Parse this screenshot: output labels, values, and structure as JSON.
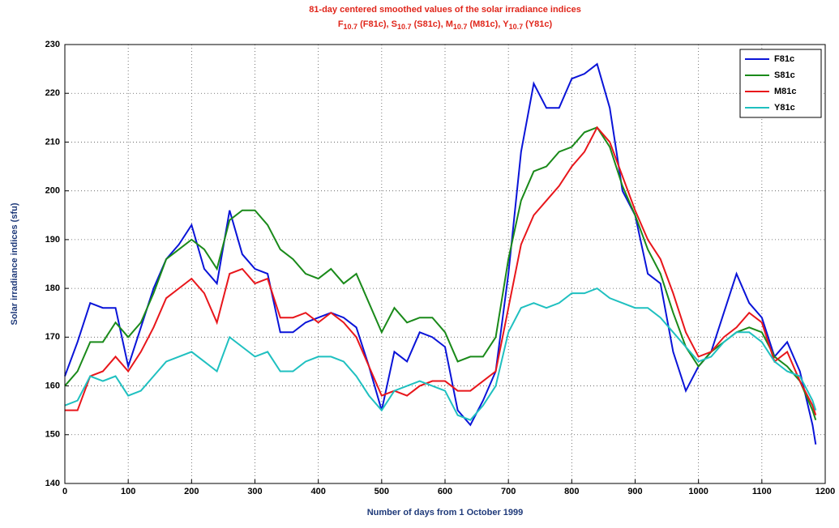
{
  "chart_data": {
    "type": "line",
    "title": "81-day centered smoothed values of the solar irradiance indices",
    "subtitle": [
      "F",
      "10.7",
      " (F81c), S",
      "10.7",
      " (S81c), M",
      "10.7",
      " (M81c), Y",
      "10.7",
      " (Y81c)"
    ],
    "xlabel": "Number of days from 1 October 1999",
    "ylabel": "Solar irradiance indices (sfu)",
    "x": [
      0,
      20,
      40,
      60,
      80,
      100,
      120,
      140,
      160,
      180,
      200,
      220,
      240,
      260,
      280,
      300,
      320,
      340,
      360,
      380,
      400,
      420,
      440,
      460,
      480,
      500,
      520,
      540,
      560,
      580,
      600,
      620,
      640,
      660,
      680,
      700,
      720,
      740,
      760,
      780,
      800,
      820,
      840,
      860,
      880,
      900,
      920,
      940,
      960,
      980,
      1000,
      1020,
      1040,
      1060,
      1080,
      1100,
      1120,
      1140,
      1160,
      1180,
      1185
    ],
    "series": [
      {
        "name": "F81c",
        "color": "#0a14d8",
        "values": [
          162,
          169,
          177,
          176,
          176,
          164,
          172,
          180,
          186,
          189,
          193,
          184,
          181,
          196,
          187,
          184,
          183,
          171,
          171,
          173,
          174,
          175,
          174,
          172,
          164,
          155,
          167,
          165,
          171,
          170,
          168,
          155,
          152,
          157,
          163,
          183,
          208,
          222,
          217,
          217,
          223,
          224,
          226,
          217,
          200,
          195,
          183,
          181,
          167,
          159,
          164,
          167,
          175,
          183,
          177,
          174,
          166,
          169,
          163,
          152,
          148
        ]
      },
      {
        "name": "S81c",
        "color": "#1a8a1a",
        "values": [
          160,
          163,
          169,
          169,
          173,
          170,
          173,
          179,
          186,
          188,
          190,
          188,
          184,
          194,
          196,
          196,
          193,
          188,
          186,
          183,
          182,
          184,
          181,
          183,
          177,
          171,
          176,
          173,
          174,
          174,
          171,
          165,
          166,
          166,
          170,
          186,
          198,
          204,
          205,
          208,
          209,
          212,
          213,
          209,
          201,
          195,
          188,
          183,
          175,
          168,
          164,
          167,
          169,
          171,
          172,
          171,
          166,
          164,
          161,
          155,
          153
        ]
      },
      {
        "name": "M81c",
        "color": "#e8161b",
        "values": [
          155,
          155,
          162,
          163,
          166,
          163,
          167,
          172,
          178,
          180,
          182,
          179,
          173,
          183,
          184,
          181,
          182,
          174,
          174,
          175,
          173,
          175,
          173,
          170,
          164,
          158,
          159,
          158,
          160,
          161,
          161,
          159,
          159,
          161,
          163,
          176,
          189,
          195,
          198,
          201,
          205,
          208,
          213,
          210,
          203,
          196,
          190,
          186,
          179,
          171,
          166,
          167,
          170,
          172,
          175,
          173,
          165,
          167,
          161,
          156,
          154
        ]
      },
      {
        "name": "Y81c",
        "color": "#1fc0c0",
        "values": [
          156,
          157,
          162,
          161,
          162,
          158,
          159,
          162,
          165,
          166,
          167,
          165,
          163,
          170,
          168,
          166,
          167,
          163,
          163,
          165,
          166,
          166,
          165,
          162,
          158,
          155,
          159,
          160,
          161,
          160,
          159,
          154,
          153,
          156,
          160,
          171,
          176,
          177,
          176,
          177,
          179,
          179,
          180,
          178,
          177,
          176,
          176,
          174,
          171,
          168,
          165,
          166,
          169,
          171,
          171,
          169,
          165,
          163,
          162,
          157,
          155
        ]
      }
    ],
    "xlim": [
      0,
      1200
    ],
    "xticks": [
      0,
      100,
      200,
      300,
      400,
      500,
      600,
      700,
      800,
      900,
      1000,
      1100,
      1200
    ],
    "ylim": [
      140,
      230
    ],
    "yticks": [
      140,
      150,
      160,
      170,
      180,
      190,
      200,
      210,
      220,
      230
    ],
    "grid": true,
    "legend": "northeast"
  }
}
